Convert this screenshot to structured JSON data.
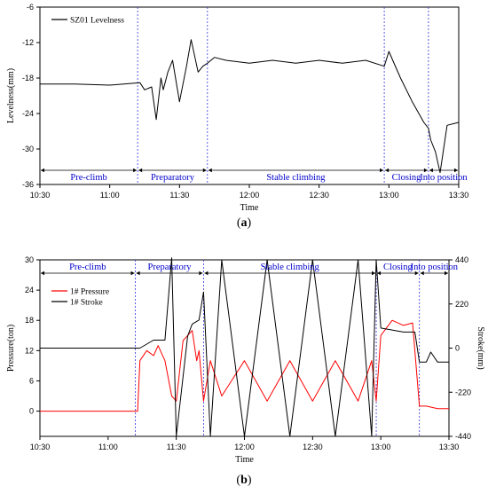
{
  "chart_data": [
    {
      "panel": "(a)",
      "type": "line",
      "xlabel": "Time",
      "ylabel": "Levelness(mm)",
      "x_ticks": [
        "10:30",
        "11:00",
        "11:30",
        "12:00",
        "12:30",
        "13:00",
        "13:30"
      ],
      "y_ticks": [
        "-6",
        "-12",
        "-18",
        "-24",
        "-30",
        "-36"
      ],
      "xlim": [
        "10:30",
        "13:30"
      ],
      "ylim": [
        -36,
        -6
      ],
      "legend": "top-left",
      "series": [
        {
          "name": "SZ01 Levelness",
          "color": "#000000",
          "x": [
            "10:30",
            "10:45",
            "11:00",
            "11:13",
            "11:15",
            "11:18",
            "11:20",
            "11:22",
            "11:23",
            "11:25",
            "11:27",
            "11:30",
            "11:33",
            "11:35",
            "11:38",
            "11:40",
            "11:42",
            "11:45",
            "11:50",
            "12:00",
            "12:10",
            "12:20",
            "12:30",
            "12:40",
            "12:50",
            "12:58",
            "13:00",
            "13:05",
            "13:10",
            "13:15",
            "13:17",
            "13:18",
            "13:20",
            "13:22",
            "13:25",
            "13:30"
          ],
          "y": [
            -19,
            -19,
            -19.2,
            -18.8,
            -20,
            -19.5,
            -25,
            -18,
            -20,
            -17,
            -15,
            -22,
            -16,
            -11.5,
            -17,
            -16,
            -15.5,
            -14.5,
            -15,
            -15.5,
            -15,
            -15.5,
            -15,
            -15.5,
            -15,
            -16,
            -13.5,
            -18,
            -22,
            -25.5,
            -26.5,
            -28.5,
            -30.5,
            -34,
            -26,
            -25.5
          ]
        }
      ],
      "phase_boundaries": [
        "11:12",
        "11:42",
        "12:58",
        "13:17"
      ],
      "phases": [
        "Pre-climb",
        "Preparatory",
        "Stable climbing",
        "Closing",
        "Into position"
      ]
    },
    {
      "panel": "(b)",
      "type": "line",
      "xlabel": "Time",
      "ylabel": "Pressure(ton)",
      "y2label": "Stroke(mm)",
      "x_ticks": [
        "10:30",
        "11:00",
        "11:30",
        "12:00",
        "12:30",
        "13:00",
        "13:30"
      ],
      "y_ticks": [
        "0",
        "6",
        "12",
        "18",
        "24",
        "30"
      ],
      "y2_ticks": [
        "-440",
        "-220",
        "0",
        "220",
        "440"
      ],
      "xlim": [
        "10:30",
        "13:30"
      ],
      "ylim": [
        -5,
        30
      ],
      "y2lim": [
        -440,
        440
      ],
      "legend": "top-left",
      "series": [
        {
          "name": "1# Pressure",
          "color": "#ff0000",
          "axis": "left",
          "x": [
            "10:30",
            "11:10",
            "11:13",
            "11:14",
            "11:17",
            "11:20",
            "11:22",
            "11:25",
            "11:28",
            "11:30",
            "11:33",
            "11:35",
            "11:37",
            "11:39",
            "11:40",
            "11:42",
            "11:45",
            "11:50",
            "12:00",
            "12:10",
            "12:20",
            "12:30",
            "12:40",
            "12:50",
            "12:56",
            "12:58",
            "13:00",
            "13:05",
            "13:10",
            "13:14",
            "13:17",
            "13:20",
            "13:25",
            "13:30"
          ],
          "y": [
            0,
            0,
            0,
            10,
            12,
            11,
            13,
            10,
            3,
            2,
            14,
            15,
            16,
            10,
            12,
            2,
            10,
            3,
            10,
            2,
            10,
            2,
            10,
            2,
            10,
            2,
            15,
            18,
            17,
            17.5,
            1,
            1,
            0.5,
            0.5
          ]
        },
        {
          "name": "1# Stroke",
          "color": "#000000",
          "axis": "right",
          "x": [
            "10:30",
            "11:10",
            "11:14",
            "11:20",
            "11:25",
            "11:28",
            "11:30",
            "11:35",
            "11:37",
            "11:40",
            "11:42",
            "11:45",
            "11:50",
            "12:00",
            "12:10",
            "12:20",
            "12:30",
            "12:40",
            "12:50",
            "12:56",
            "12:58",
            "13:00",
            "13:05",
            "13:10",
            "13:15",
            "13:17",
            "13:20",
            "13:22",
            "13:25",
            "13:30"
          ],
          "y": [
            0,
            0,
            0,
            40,
            40,
            450,
            -440,
            60,
            120,
            140,
            280,
            -440,
            440,
            -440,
            440,
            -440,
            440,
            -440,
            440,
            -440,
            440,
            100,
            90,
            80,
            80,
            -70,
            -70,
            -20,
            -70,
            -70
          ]
        }
      ],
      "phase_boundaries": [
        "11:12",
        "11:42",
        "12:58",
        "13:17"
      ],
      "phases": [
        "Pre-climb",
        "Preparatory",
        "Stable climbing",
        "Closing",
        "Into position"
      ]
    }
  ],
  "figure": {
    "caption_a_open": "(",
    "caption_a_letter": "a",
    "caption_a_close": ")",
    "caption_b_open": "(",
    "caption_b_letter": "b",
    "caption_b_close": ")"
  }
}
